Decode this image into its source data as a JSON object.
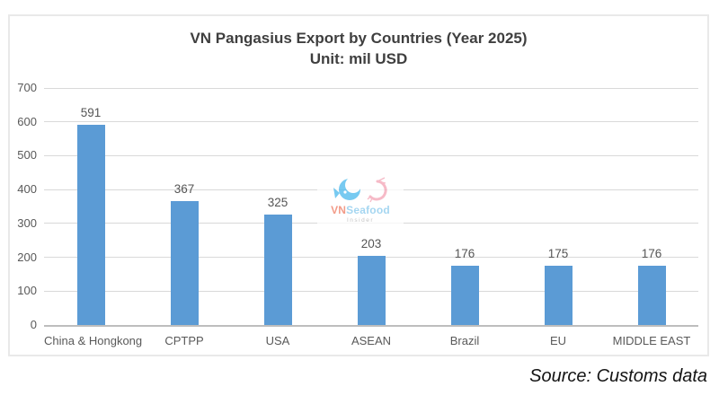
{
  "chart_data": {
    "type": "bar",
    "title": "VN Pangasius Export by Countries (Year 2025)",
    "subtitle": "Unit: mil USD",
    "categories": [
      "China & Hongkong",
      "CPTPP",
      "USA",
      "ASEAN",
      "Brazil",
      "EU",
      "MIDDLE EAST"
    ],
    "values": [
      591,
      367,
      325,
      203,
      176,
      175,
      176
    ],
    "xlabel": "",
    "ylabel": "",
    "ylim": [
      0,
      700
    ],
    "ytick_step": 100,
    "grid": true,
    "legend": false,
    "bar_color": "#5b9bd5",
    "label_color": "#595959"
  },
  "watermark": {
    "brand_prefix": "VN",
    "brand_suffix": "Seafood",
    "tagline": "Insider",
    "fish_color": "#56bdee",
    "shrimp_color": "#f4a9ba"
  },
  "footer": {
    "source_label": "Source: Customs data"
  }
}
